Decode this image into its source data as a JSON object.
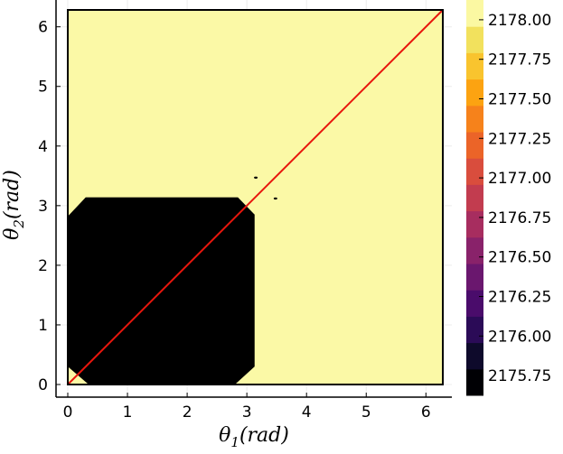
{
  "chart_data": {
    "type": "heatmap",
    "subtype": "filled-contour",
    "xlabel": {
      "base": "θ",
      "sub": "1",
      "rest": "(rad)"
    },
    "ylabel": {
      "base": "θ",
      "sub": "2",
      "rest": "(rad)"
    },
    "xlim": [
      0,
      6.283
    ],
    "ylim": [
      0,
      6.283
    ],
    "x_ticks": [
      0,
      1,
      2,
      3,
      4,
      5,
      6
    ],
    "y_ticks": [
      0,
      1,
      2,
      3,
      4,
      5,
      6
    ],
    "x_tick_labels": [
      "0",
      "1",
      "2",
      "3",
      "4",
      "5",
      "6"
    ],
    "y_tick_labels": [
      "0",
      "1",
      "2",
      "3",
      "4",
      "5",
      "6"
    ],
    "colorbar": {
      "tick_values": [
        2175.75,
        2176.0,
        2176.25,
        2176.5,
        2176.75,
        2177.0,
        2177.25,
        2177.5,
        2177.75,
        2178.0
      ],
      "tick_labels": [
        "2175.75",
        "2176.00",
        "2176.25",
        "2176.50",
        "2176.75",
        "2177.00",
        "2177.25",
        "2177.50",
        "2177.75",
        "2178.00"
      ],
      "colors": [
        "#000004",
        "#0e0a2b",
        "#2b0b57",
        "#4a0c6b",
        "#6a176e",
        "#89226a",
        "#a72d5f",
        "#c23c4f",
        "#d94d3d",
        "#eb6428",
        "#f6821b",
        "#fca311",
        "#f9c42e",
        "#f2e15d",
        "#fbf8a2"
      ]
    },
    "regions": [
      {
        "level": "low",
        "color": "#000000",
        "polygon_theta": [
          [
            0,
            0.3
          ],
          [
            0.35,
            0
          ],
          [
            2.8,
            0
          ],
          [
            3.13,
            0.3
          ],
          [
            3.13,
            2.85
          ],
          [
            2.85,
            3.14
          ],
          [
            0.3,
            3.14
          ],
          [
            0,
            2.82
          ]
        ]
      },
      {
        "level": "low",
        "color": "#000000",
        "spot_theta": [
          3.15,
          3.47
        ]
      },
      {
        "level": "low",
        "color": "#000000",
        "spot_theta": [
          3.48,
          3.12
        ]
      }
    ],
    "background": {
      "level": "high",
      "color": "#fbf9a6"
    },
    "diagonal": {
      "from": [
        0,
        0
      ],
      "to": [
        6.283,
        6.283
      ],
      "color": "#e8160d"
    }
  }
}
